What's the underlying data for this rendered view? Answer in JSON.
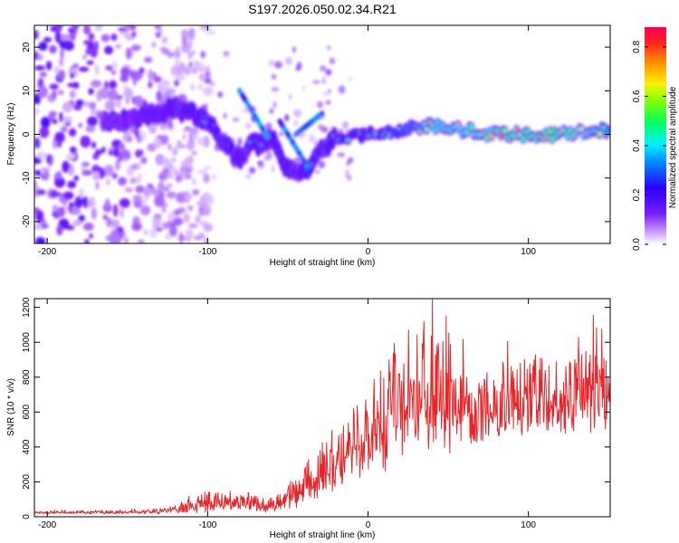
{
  "figure_title": "S197.2026.050.02.34.R21",
  "colors": {
    "snr_line": "#e8262a",
    "frame": "#000000"
  },
  "chart_data": [
    {
      "type": "heatmap",
      "name": "spectrogram",
      "title": "S197.2026.050.02.34.R21",
      "xlabel": "Height of straight line (km)",
      "ylabel": "Frequency (Hz)",
      "xlim": [
        -208,
        151
      ],
      "ylim": [
        -25,
        25
      ],
      "xticks": [
        -200,
        -100,
        0,
        100
      ],
      "yticks": [
        -20,
        -10,
        0,
        10,
        20
      ],
      "xtick_labels": [
        "-200",
        "-100",
        "0",
        "100"
      ],
      "ytick_labels": [
        "-20",
        "-10",
        "0",
        "10",
        "20"
      ],
      "colorbar": {
        "label": "Normalized spectral amplitude",
        "range": [
          0,
          0.88
        ],
        "ticks": [
          0,
          0.2,
          0.4,
          0.6,
          0.8
        ],
        "tick_labels": [
          "0.0",
          "0.2",
          "0.4",
          "0.6",
          "0.8"
        ],
        "colormap": "rainbow"
      },
      "ridge": {
        "description": "dominant frequency ridge",
        "x": [
          -160,
          -140,
          -120,
          -110,
          -100,
          -90,
          -80,
          -75,
          -60,
          -50,
          -40,
          -30,
          -20,
          0,
          20,
          40,
          60,
          80,
          100,
          120,
          150
        ],
        "y": [
          3,
          4,
          6,
          5,
          3,
          -2,
          -6,
          -3,
          -1,
          -8,
          -9,
          -4,
          -1,
          0,
          1,
          2,
          1,
          0,
          0,
          0,
          1
        ],
        "amplitude": [
          0.2,
          0.25,
          0.3,
          0.3,
          0.4,
          0.35,
          0.3,
          0.35,
          0.35,
          0.3,
          0.35,
          0.35,
          0.4,
          0.45,
          0.5,
          0.7,
          0.75,
          0.8,
          0.85,
          0.85,
          0.6
        ]
      }
    },
    {
      "type": "line",
      "name": "snr",
      "title": "",
      "xlabel": "Height of straight line (km)",
      "ylabel": "SNR (10 * v/v)",
      "xlim": [
        -208,
        151
      ],
      "ylim": [
        0,
        1250
      ],
      "xticks": [
        -200,
        -100,
        0,
        100
      ],
      "yticks": [
        0,
        200,
        400,
        600,
        800,
        1000,
        1200
      ],
      "xtick_labels": [
        "-200",
        "-100",
        "0",
        "100"
      ],
      "ytick_labels": [
        "0",
        "200",
        "400",
        "600",
        "800",
        "1000",
        "1200"
      ],
      "envelope": {
        "x": [
          -208,
          -160,
          -130,
          -100,
          -80,
          -60,
          -40,
          -30,
          -20,
          -10,
          0,
          10,
          20,
          30,
          40,
          50,
          60,
          80,
          100,
          120,
          140,
          151
        ],
        "low": [
          15,
          15,
          15,
          25,
          40,
          20,
          40,
          80,
          150,
          200,
          220,
          250,
          300,
          330,
          360,
          330,
          380,
          420,
          450,
          460,
          470,
          480
        ],
        "high": [
          35,
          40,
          50,
          150,
          140,
          110,
          300,
          420,
          550,
          650,
          700,
          900,
          1100,
          1050,
          1250,
          1100,
          1000,
          950,
          950,
          900,
          1200,
          1000
        ]
      }
    }
  ]
}
